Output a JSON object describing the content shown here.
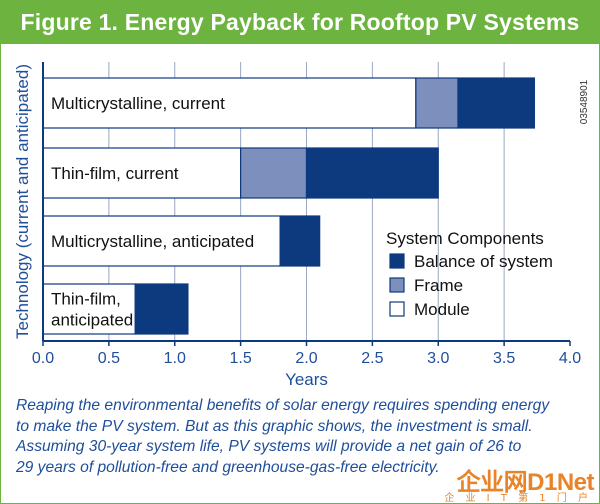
{
  "figure_title": "Figure 1. Energy Payback for Rooftop PV Systems",
  "figure_id": "03548901",
  "caption": [
    "Reaping the environmental benefits of solar energy requires spending energy",
    "to make the PV system. But as this graphic shows, the investment is small.",
    "Assuming 30-year system life, PV systems will provide a net gain of 26 to",
    "29 years of pollution-free and greenhouse-gas-free electricity."
  ],
  "watermark": {
    "main": "企业网D1Net",
    "sub": "企 业 I T 第 1 门 户"
  },
  "colors": {
    "title_bg": "#6cb33f",
    "balance_of_system": "#0d3a7e",
    "frame": "#7d8fbc",
    "module": "#ffffff",
    "axis_text": "#1f4e9a",
    "caption_text": "#1f4e9a"
  },
  "chart_data": {
    "type": "bar",
    "orientation": "horizontal",
    "stacked": true,
    "categories": [
      [
        "Multicrystalline, current"
      ],
      [
        "Thin-film, current"
      ],
      [
        "Multicrystalline, anticipated"
      ],
      [
        "Thin-film,",
        "anticipated"
      ]
    ],
    "series": [
      {
        "name": "Module",
        "values": [
          2.83,
          1.5,
          1.8,
          0.7
        ]
      },
      {
        "name": "Frame",
        "values": [
          0.32,
          0.5,
          0.0,
          0.0
        ]
      },
      {
        "name": "Balance of system",
        "values": [
          0.58,
          1.0,
          0.3,
          0.4
        ]
      }
    ],
    "xlabel": "Years",
    "ylabel": "Technology (current and anticipated)",
    "xlim": [
      0,
      4
    ],
    "xticks": [
      "0.0",
      "0.5",
      "1.0",
      "1.5",
      "2.0",
      "2.5",
      "3.0",
      "3.5",
      "4.0"
    ],
    "grid": true,
    "legend": {
      "title": "System Components",
      "placement": "bottom-right",
      "entries": [
        "Balance of system",
        "Frame",
        "Module"
      ]
    }
  }
}
